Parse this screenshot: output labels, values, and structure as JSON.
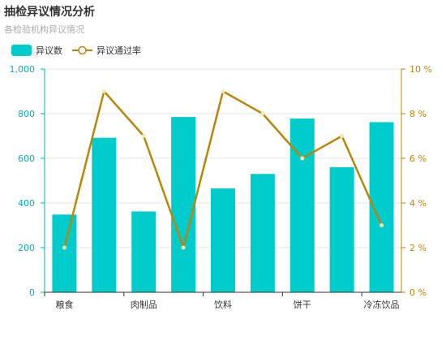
{
  "title": "抽检异议情况分析",
  "subtitle": "各检验机构异议情况",
  "colors": {
    "bar": "#00cccc",
    "line": "#b8860b",
    "line_point_fill": "#f7e7a8",
    "grid": "#e6e6e6"
  },
  "chart_data": {
    "type": "bar",
    "categories": [
      "粮食",
      "",
      "肉制品",
      "",
      "饮料",
      "",
      "饼干",
      "",
      "冷冻饮品"
    ],
    "series": [
      {
        "name": "异议数",
        "type": "bar",
        "axis": "left",
        "values": [
          348,
          692,
          362,
          785,
          465,
          530,
          778,
          560,
          762
        ]
      },
      {
        "name": "异议通过率",
        "type": "line",
        "axis": "right",
        "values": [
          2,
          9,
          7,
          2,
          9,
          8,
          6,
          7,
          3
        ]
      }
    ],
    "y_left": {
      "min": 0,
      "max": 1000,
      "ticks": [
        "0",
        "200",
        "400",
        "600",
        "800",
        "1,000"
      ]
    },
    "y_right": {
      "min": 0,
      "max": 10,
      "ticks": [
        "0 %",
        "2 %",
        "4 %",
        "6 %",
        "8 %",
        "10 %"
      ]
    },
    "grid": true,
    "legend_position": "top-left"
  }
}
